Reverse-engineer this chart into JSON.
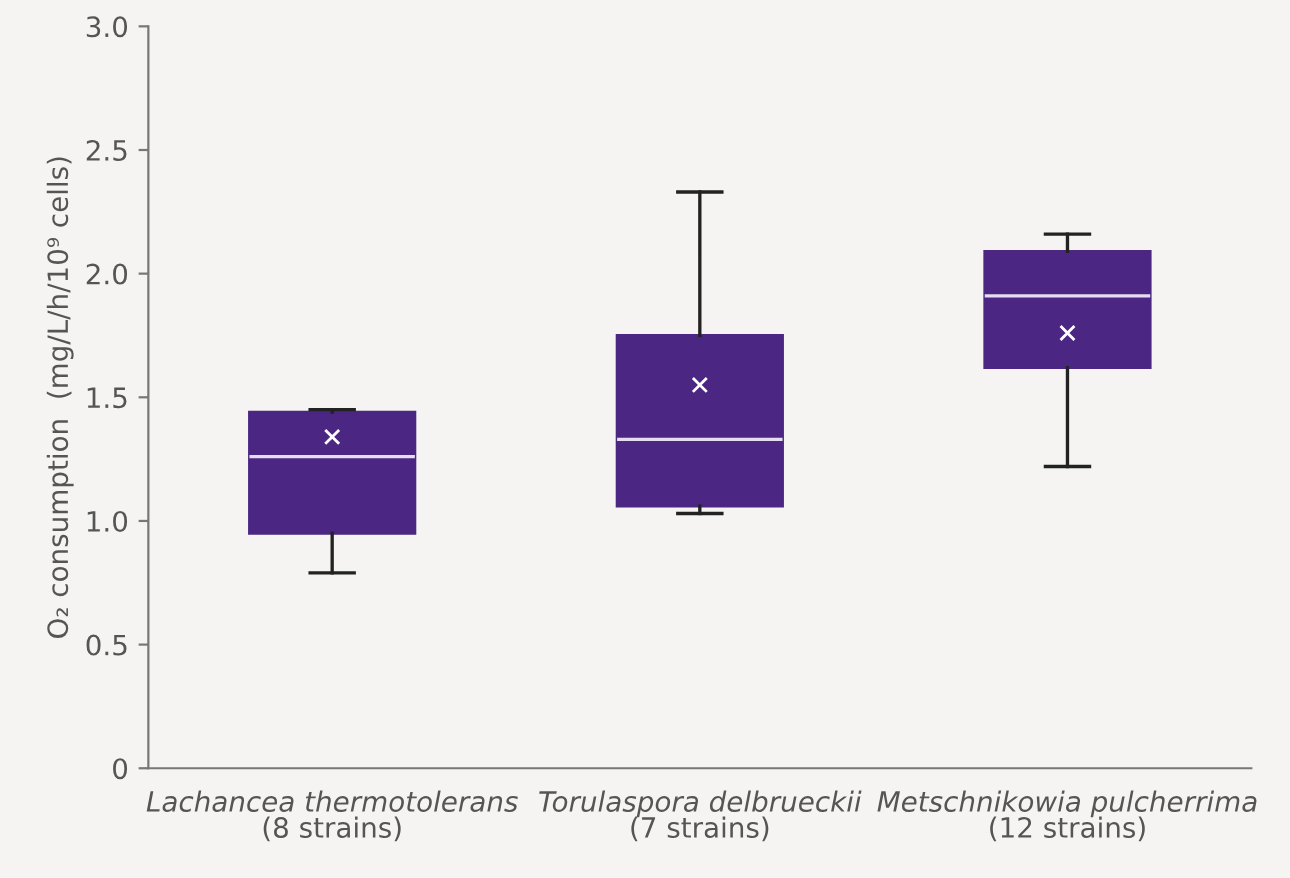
{
  "chart_data": {
    "type": "box",
    "ylabel": "O₂ consumption  (mg/L/h/10⁹ cells)",
    "categories": [
      "Lachancea thermotolerans\n(8 strains)",
      "Torulaspora delbrueckii\n(7 strains)",
      "Metschnikowia pulcherrima\n(12 strains)"
    ],
    "boxes": [
      {
        "low": 0.79,
        "q1": 0.95,
        "median": 1.26,
        "q3": 1.44,
        "high": 1.45,
        "mean": 1.34
      },
      {
        "low": 1.03,
        "q1": 1.06,
        "median": 1.33,
        "q3": 1.75,
        "high": 2.33,
        "mean": 1.55
      },
      {
        "low": 1.22,
        "q1": 1.62,
        "median": 1.91,
        "q3": 2.09,
        "high": 2.16,
        "mean": 1.76
      }
    ],
    "color": "#4b2683",
    "ylim": [
      0,
      3.0
    ],
    "yticks": [
      0,
      {
        "value": 0.5,
        "label": "0.5"
      },
      {
        "value": 1.0,
        "label": "1.0"
      },
      {
        "value": 1.5,
        "label": "1.5"
      },
      {
        "value": 2.0,
        "label": "2.0"
      },
      {
        "value": 2.5,
        "label": "2.5"
      },
      {
        "value": 3.0,
        "label": "3.0"
      }
    ],
    "grid": false
  }
}
